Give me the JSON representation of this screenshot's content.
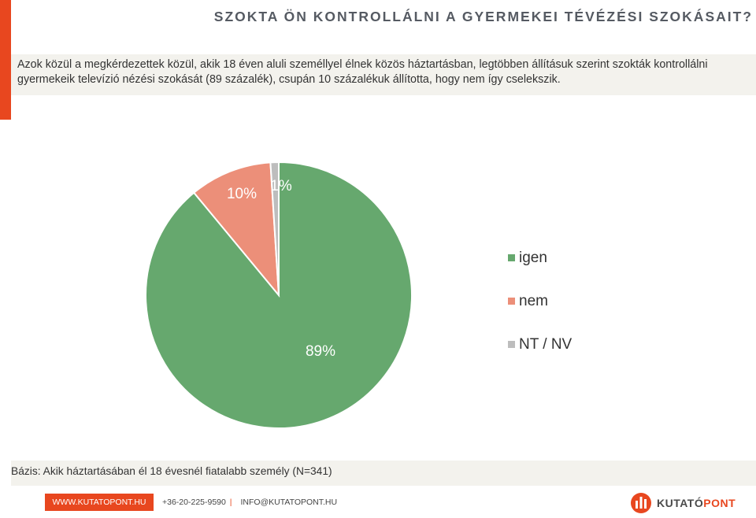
{
  "title": "SZOKTA ÖN KONTROLLÁLNI A GYERMEKEI TÉVÉZÉSI SZOKÁSAIT?",
  "intro_text": "Azok közül a megkérdezettek közül, akik 18 éven aluli személlyel élnek közös háztartásban, legtöbben állításuk szerint szokták kontrollálni gyermekeik televízió nézési szokását (89 százalék), csupán 10 százalékuk állította, hogy nem így cselekszik.",
  "chart_data": {
    "type": "pie",
    "categories": [
      "igen",
      "nem",
      "NT / NV"
    ],
    "values": [
      89,
      10,
      1
    ],
    "labels": [
      "89%",
      "10%",
      "1%"
    ],
    "colors": [
      "#66a86e",
      "#ec8f79",
      "#bdbdbd"
    ],
    "start": "12 o'clock, clockwise",
    "legend": "right"
  },
  "base_note": "Bázis: Akik háztartásában él 18 évesnél fiatalabb személy (N=341)",
  "footer": {
    "website": "WWW.KUTATOPONT.HU",
    "phone": "+36-20-225-9590",
    "separator": "|",
    "email": "INFO@KUTATOPONT.HU",
    "brand_part1": "KUTATÓ",
    "brand_part2": "PONT",
    "brand_colors": [
      "#4a4a4a",
      "#e8471f"
    ]
  }
}
